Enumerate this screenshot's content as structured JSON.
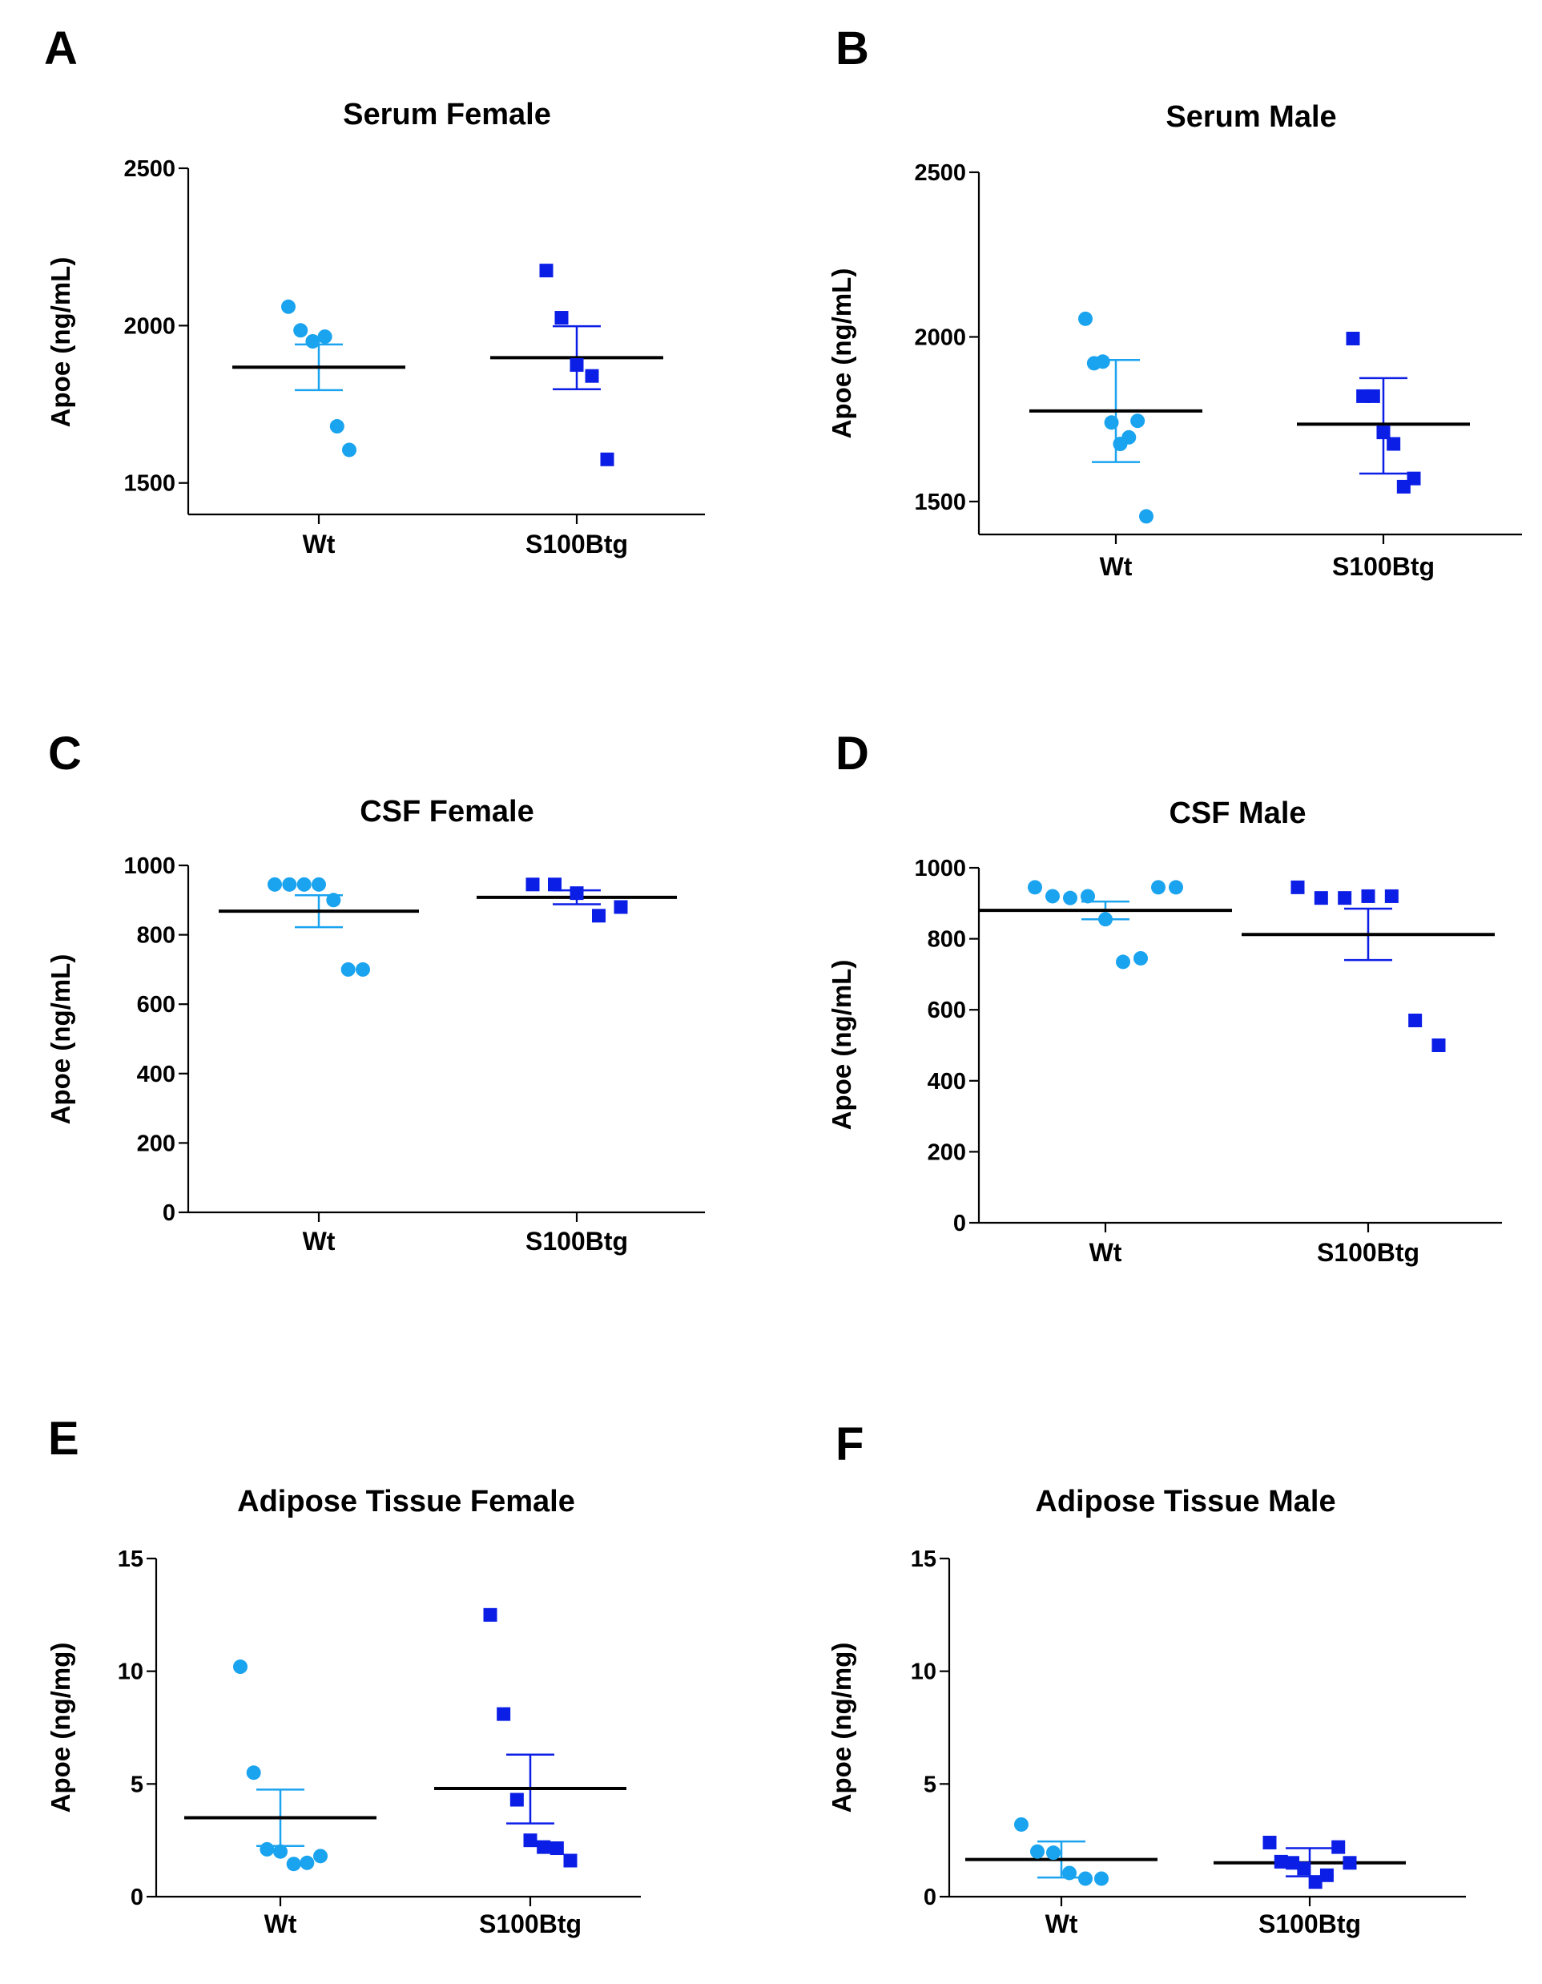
{
  "colors": {
    "wt": "#1aa3ef",
    "tg": "#0b1ee6",
    "mean": "#000000",
    "axis": "#000000"
  },
  "chart_data": [
    {
      "type": "scatter",
      "panel": "A",
      "title": "Serum Female",
      "ylabel": "Apoe (ng/mL)",
      "ylim": [
        1400,
        2500
      ],
      "yticks": [
        1500,
        2000,
        2500
      ],
      "categories": [
        "Wt",
        "S100Btg"
      ],
      "series": [
        {
          "name": "Wt",
          "marker": "circle",
          "values": [
            2060,
            1985,
            1950,
            1965,
            1680,
            1605
          ],
          "mean": 1868,
          "sem_low": 1795,
          "sem_high": 1940
        },
        {
          "name": "S100Btg",
          "marker": "square",
          "values": [
            2175,
            2025,
            1875,
            1840,
            1575
          ],
          "mean": 1898,
          "sem_low": 1798,
          "sem_high": 1998
        }
      ]
    },
    {
      "type": "scatter",
      "panel": "B",
      "title": "Serum Male",
      "ylabel": "Apoe (ng/mL)",
      "ylim": [
        1400,
        2500
      ],
      "yticks": [
        1500,
        2000,
        2500
      ],
      "categories": [
        "Wt",
        "S100Btg"
      ],
      "series": [
        {
          "name": "Wt",
          "marker": "circle",
          "values": [
            2055,
            1920,
            1925,
            1740,
            1675,
            1695,
            1745,
            1455
          ],
          "mean": 1775,
          "sem_low": 1620,
          "sem_high": 1930
        },
        {
          "name": "S100Btg",
          "marker": "square",
          "values": [
            1995,
            1820,
            1820,
            1710,
            1675,
            1545,
            1570
          ],
          "mean": 1735,
          "sem_low": 1585,
          "sem_high": 1875
        }
      ]
    },
    {
      "type": "scatter",
      "panel": "C",
      "title": "CSF Female",
      "ylabel": "Apoe (ng/mL)",
      "ylim": [
        0,
        1000
      ],
      "yticks": [
        0,
        200,
        400,
        600,
        800,
        1000
      ],
      "categories": [
        "Wt",
        "S100Btg"
      ],
      "series": [
        {
          "name": "Wt",
          "marker": "circle",
          "values": [
            945,
            945,
            945,
            945,
            900,
            700,
            700
          ],
          "mean": 868,
          "sem_low": 822,
          "sem_high": 914
        },
        {
          "name": "S100Btg",
          "marker": "square",
          "values": [
            945,
            945,
            920,
            855,
            880
          ],
          "mean": 908,
          "sem_low": 888,
          "sem_high": 928
        }
      ]
    },
    {
      "type": "scatter",
      "panel": "D",
      "title": "CSF Male",
      "ylabel": "Apoe (ng/mL)",
      "ylim": [
        0,
        1000
      ],
      "yticks": [
        0,
        200,
        400,
        600,
        800,
        1000
      ],
      "categories": [
        "Wt",
        "S100Btg"
      ],
      "series": [
        {
          "name": "Wt",
          "marker": "circle",
          "values": [
            945,
            920,
            915,
            920,
            855,
            735,
            745,
            945,
            945
          ],
          "mean": 880,
          "sem_low": 855,
          "sem_high": 905
        },
        {
          "name": "S100Btg",
          "marker": "square",
          "values": [
            945,
            915,
            915,
            920,
            920,
            570,
            500
          ],
          "mean": 812,
          "sem_low": 740,
          "sem_high": 885
        }
      ]
    },
    {
      "type": "scatter",
      "panel": "E",
      "title": "Adipose Tissue Female",
      "ylabel": "Apoe (ng/mg)",
      "ylim": [
        0,
        15
      ],
      "yticks": [
        0,
        5,
        10,
        15
      ],
      "categories": [
        "Wt",
        "S100Btg"
      ],
      "series": [
        {
          "name": "Wt",
          "marker": "circle",
          "values": [
            10.2,
            5.5,
            2.1,
            2.0,
            1.45,
            1.5,
            1.8
          ],
          "mean": 3.5,
          "sem_low": 2.25,
          "sem_high": 4.75
        },
        {
          "name": "S100Btg",
          "marker": "square",
          "values": [
            12.5,
            8.1,
            4.3,
            2.5,
            2.2,
            2.15,
            1.6
          ],
          "mean": 4.8,
          "sem_low": 3.25,
          "sem_high": 6.3
        }
      ]
    },
    {
      "type": "scatter",
      "panel": "F",
      "title": "Adipose Tissue Male",
      "ylabel": "Apoe (ng/mg)",
      "ylim": [
        0,
        15
      ],
      "yticks": [
        0,
        5,
        10,
        15
      ],
      "categories": [
        "Wt",
        "S100Btg"
      ],
      "series": [
        {
          "name": "Wt",
          "marker": "circle",
          "values": [
            3.2,
            2.0,
            1.95,
            1.05,
            0.8,
            0.8
          ],
          "mean": 1.65,
          "sem_low": 0.85,
          "sem_high": 2.45
        },
        {
          "name": "S100Btg",
          "marker": "square",
          "values": [
            2.4,
            1.55,
            1.5,
            1.25,
            0.65,
            0.95,
            2.2,
            1.5
          ],
          "mean": 1.5,
          "sem_low": 0.9,
          "sem_high": 2.15
        }
      ]
    }
  ]
}
